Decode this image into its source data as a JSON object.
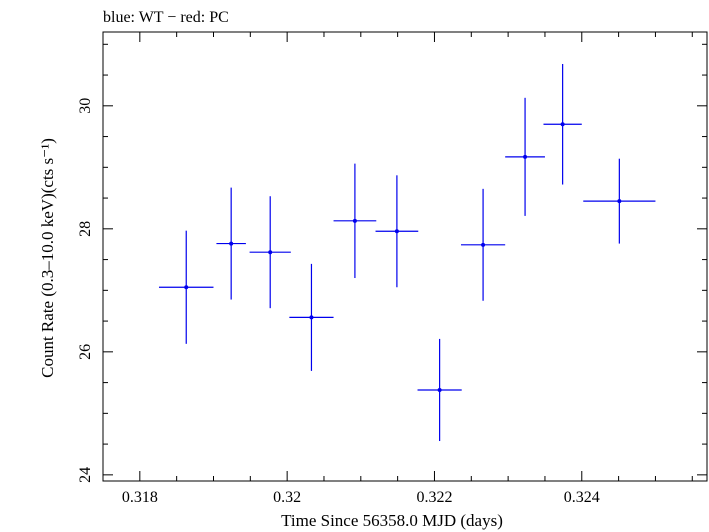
{
  "chart_data": {
    "type": "scatter",
    "title": "blue: WT − red: PC",
    "xlabel": "Time Since 56358.0 MJD (days)",
    "ylabel": "Count Rate (0.3–10.0 keV)(cts s⁻¹)",
    "xlim": [
      0.3175,
      0.3257
    ],
    "ylim": [
      23.9,
      31.2
    ],
    "x_ticks": [
      0.318,
      0.32,
      0.322,
      0.324
    ],
    "x_tick_labels": [
      "0.318",
      "0.32",
      "0.322",
      "0.324"
    ],
    "y_ticks": [
      24,
      26,
      28,
      30
    ],
    "y_tick_labels": [
      "24",
      "26",
      "28",
      "30"
    ],
    "grid": false,
    "series": [
      {
        "name": "WT",
        "color": "#0000ee",
        "points": [
          {
            "x": 0.31863,
            "xerr": 0.00037,
            "y": 27.05,
            "yerr": 0.92
          },
          {
            "x": 0.31924,
            "xerr": 0.0002,
            "y": 27.76,
            "yerr": 0.91
          },
          {
            "x": 0.31977,
            "xerr": 0.00028,
            "y": 27.62,
            "yerr": 0.91
          },
          {
            "x": 0.32033,
            "xerr": 0.0003,
            "y": 26.56,
            "yerr": 0.87
          },
          {
            "x": 0.32092,
            "xerr": 0.00029,
            "y": 28.13,
            "yerr": 0.93
          },
          {
            "x": 0.32149,
            "xerr": 0.00029,
            "y": 27.96,
            "yerr": 0.91
          },
          {
            "x": 0.32207,
            "xerr": 0.0003,
            "y": 25.38,
            "yerr": 0.83
          },
          {
            "x": 0.32266,
            "xerr": 0.0003,
            "y": 27.74,
            "yerr": 0.91
          },
          {
            "x": 0.32323,
            "xerr": 0.00027,
            "y": 29.17,
            "yerr": 0.96
          },
          {
            "x": 0.32374,
            "xerr": 0.00026,
            "y": 29.7,
            "yerr": 0.98
          },
          {
            "x": 0.32451,
            "xerr": 0.00049,
            "y": 28.45,
            "yerr": 0.69
          }
        ]
      }
    ]
  }
}
